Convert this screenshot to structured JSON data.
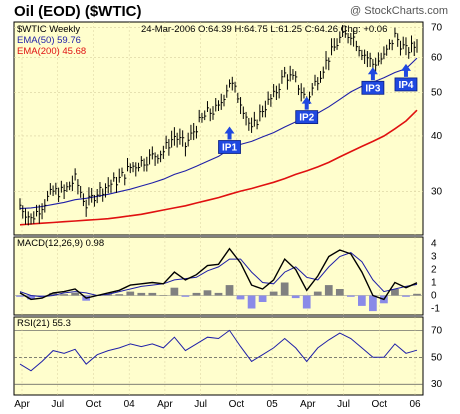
{
  "header": {
    "title": "Oil (EOD) ($WTIC)",
    "watermark": "@ StockCharts.com"
  },
  "price_panel": {
    "symbol_line": "$WTIC Weekly",
    "quote_line": "24-Mar-2006  O:64.39  H:64.75  L:61.25  C:64.26  Chg: +0.06",
    "ema50_label": "EMA(50) 59.76",
    "ema200_label": "EMA(200) 45.68",
    "callouts": [
      "IP1",
      "IP2",
      "IP3",
      "IP4"
    ]
  },
  "macd_panel": {
    "label": "MACD(12,26,9)  0.98"
  },
  "rsi_panel": {
    "label": "RSI(21)  55.3"
  },
  "x_labels": [
    "Apr",
    "Jul",
    "Oct",
    "04",
    "Apr",
    "Jul",
    "Oct",
    "05",
    "Apr",
    "Jul",
    "Oct",
    "06"
  ],
  "colors": {
    "panel_bg": "#fffecd",
    "price": "#000000",
    "ema50": "#1f1fa8",
    "ema200": "#e01010",
    "callout": "#1f48e0",
    "histogram": "#808080"
  },
  "chart_data": [
    {
      "type": "line",
      "title": "Oil (EOD) ($WTIC)",
      "panel": "price",
      "x_range": [
        "2003-03",
        "2006-03"
      ],
      "ylim": [
        24,
        72
      ],
      "log_scale": true,
      "y_ticks": [
        30,
        40,
        50,
        60,
        70
      ],
      "x": [
        "2003-03",
        "2003-04",
        "2003-05",
        "2003-06",
        "2003-07",
        "2003-08",
        "2003-09",
        "2003-10",
        "2003-11",
        "2003-12",
        "2004-01",
        "2004-02",
        "2004-03",
        "2004-04",
        "2004-05",
        "2004-06",
        "2004-07",
        "2004-08",
        "2004-09",
        "2004-10",
        "2004-11",
        "2004-12",
        "2005-01",
        "2005-02",
        "2005-03",
        "2005-04",
        "2005-05",
        "2005-06",
        "2005-07",
        "2005-08",
        "2005-09",
        "2005-10",
        "2005-11",
        "2005-12",
        "2006-01",
        "2006-02",
        "2006-03"
      ],
      "series": [
        {
          "name": "$WTIC Weekly",
          "values": [
            28,
            26,
            28,
            30,
            30,
            32,
            28,
            30,
            31,
            32,
            34,
            35,
            36,
            37,
            40,
            38,
            42,
            45,
            46,
            53,
            48,
            41,
            46,
            49,
            55,
            53,
            48,
            54,
            60,
            66,
            68,
            62,
            58,
            60,
            67,
            62,
            64
          ]
        },
        {
          "name": "EMA(50)",
          "values": [
            27.5,
            27.6,
            27.8,
            28.1,
            28.4,
            28.8,
            29.0,
            29.3,
            29.6,
            30.0,
            30.4,
            30.9,
            31.4,
            32.0,
            32.8,
            33.4,
            34.2,
            35.1,
            36.0,
            37.4,
            38.3,
            38.9,
            39.8,
            40.7,
            41.9,
            43.0,
            43.8,
            45.0,
            46.5,
            48.3,
            50.2,
            51.7,
            52.8,
            54.0,
            55.5,
            56.6,
            59.76
          ]
        },
        {
          "name": "EMA(200)",
          "values": [
            25.3,
            25.4,
            25.5,
            25.6,
            25.7,
            25.8,
            25.9,
            26.0,
            26.1,
            26.3,
            26.5,
            26.7,
            27.0,
            27.3,
            27.6,
            27.9,
            28.3,
            28.7,
            29.1,
            29.6,
            30.1,
            30.5,
            31.0,
            31.5,
            32.1,
            32.8,
            33.4,
            34.1,
            34.9,
            35.9,
            36.9,
            37.9,
            38.9,
            40.0,
            41.5,
            43.2,
            45.68
          ]
        }
      ],
      "annotations": [
        {
          "label": "IP1",
          "x": "2004-10",
          "y": 42
        },
        {
          "label": "IP2",
          "x": "2005-05",
          "y": 49
        },
        {
          "label": "IP3",
          "x": "2005-11",
          "y": 57
        },
        {
          "label": "IP4",
          "x": "2006-02",
          "y": 58
        }
      ]
    },
    {
      "type": "line",
      "title": "MACD(12,26,9)",
      "panel": "macd",
      "ylim": [
        -1.5,
        4.5
      ],
      "y_ticks": [
        -1,
        0,
        1,
        2,
        3,
        4
      ],
      "x": [
        "2003-03",
        "2003-04",
        "2003-05",
        "2003-06",
        "2003-07",
        "2003-08",
        "2003-09",
        "2003-10",
        "2003-11",
        "2003-12",
        "2004-01",
        "2004-02",
        "2004-03",
        "2004-04",
        "2004-05",
        "2004-06",
        "2004-07",
        "2004-08",
        "2004-09",
        "2004-10",
        "2004-11",
        "2004-12",
        "2005-01",
        "2005-02",
        "2005-03",
        "2005-04",
        "2005-05",
        "2005-06",
        "2005-07",
        "2005-08",
        "2005-09",
        "2005-10",
        "2005-11",
        "2005-12",
        "2006-01",
        "2006-02",
        "2006-03"
      ],
      "series": [
        {
          "name": "MACD",
          "values": [
            0.2,
            -0.3,
            -0.2,
            0.2,
            0.3,
            0.5,
            -0.2,
            0.0,
            0.2,
            0.4,
            0.8,
            0.9,
            1.0,
            0.9,
            1.8,
            1.2,
            1.6,
            2.3,
            2.4,
            3.6,
            2.5,
            0.8,
            0.5,
            1.2,
            2.8,
            2.0,
            0.4,
            1.5,
            3.0,
            3.5,
            3.2,
            1.8,
            0.0,
            -0.3,
            1.0,
            0.6,
            0.98
          ]
        },
        {
          "name": "Signal",
          "values": [
            0.3,
            0.0,
            -0.1,
            0.0,
            0.2,
            0.3,
            0.2,
            0.0,
            0.1,
            0.3,
            0.5,
            0.7,
            0.8,
            0.9,
            1.2,
            1.3,
            1.4,
            1.9,
            2.2,
            2.8,
            2.8,
            1.8,
            1.0,
            0.9,
            1.8,
            2.2,
            1.4,
            1.2,
            2.2,
            3.0,
            3.3,
            2.6,
            1.2,
            0.3,
            0.5,
            0.7,
            0.85
          ]
        },
        {
          "name": "Histogram",
          "values": [
            -0.1,
            -0.3,
            -0.1,
            0.2,
            0.1,
            0.2,
            -0.4,
            0.0,
            0.1,
            0.1,
            0.3,
            0.2,
            0.2,
            0.0,
            0.6,
            -0.1,
            0.2,
            0.4,
            0.2,
            0.8,
            -0.3,
            -1.0,
            -0.5,
            0.3,
            1.0,
            -0.2,
            -1.0,
            0.3,
            0.8,
            0.5,
            -0.1,
            -0.8,
            -1.2,
            -0.6,
            0.5,
            -0.1,
            0.13
          ]
        }
      ]
    },
    {
      "type": "line",
      "title": "RSI(21)",
      "panel": "rsi",
      "ylim": [
        22,
        80
      ],
      "y_ticks": [
        30,
        50,
        70
      ],
      "reference_lines": [
        30,
        50,
        70
      ],
      "x": [
        "2003-03",
        "2003-04",
        "2003-05",
        "2003-06",
        "2003-07",
        "2003-08",
        "2003-09",
        "2003-10",
        "2003-11",
        "2003-12",
        "2004-01",
        "2004-02",
        "2004-03",
        "2004-04",
        "2004-05",
        "2004-06",
        "2004-07",
        "2004-08",
        "2004-09",
        "2004-10",
        "2004-11",
        "2004-12",
        "2005-01",
        "2005-02",
        "2005-03",
        "2005-04",
        "2005-05",
        "2005-06",
        "2005-07",
        "2005-08",
        "2005-09",
        "2005-10",
        "2005-11",
        "2005-12",
        "2006-01",
        "2006-02",
        "2006-03"
      ],
      "series": [
        {
          "name": "RSI(21)",
          "values": [
            45,
            40,
            47,
            55,
            53,
            56,
            45,
            52,
            55,
            57,
            60,
            58,
            60,
            57,
            65,
            55,
            60,
            65,
            64,
            70,
            58,
            47,
            52,
            57,
            64,
            57,
            47,
            57,
            63,
            68,
            64,
            57,
            50,
            50,
            60,
            53,
            55.3
          ]
        }
      ]
    }
  ]
}
